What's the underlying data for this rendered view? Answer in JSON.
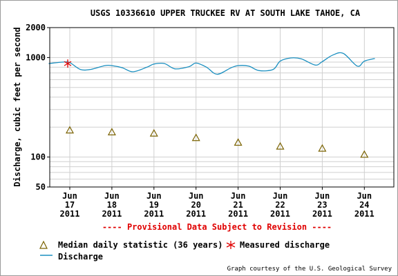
{
  "chart_data": {
    "type": "line",
    "title": "USGS 10336610 UPPER TRUCKEE RV AT SOUTH LAKE TAHOE, CA",
    "ylabel": "Discharge, cubic feet per second",
    "y_scale": "log",
    "ylim": [
      50,
      2000
    ],
    "y_ticks": [
      {
        "value": 2000,
        "label": "2000"
      },
      {
        "value": 1000,
        "label": "1000"
      },
      {
        "value": 100,
        "label": "100"
      },
      {
        "value": 50,
        "label": "50"
      }
    ],
    "x_ticks": [
      {
        "month": "Jun",
        "day": "17",
        "year": "2011"
      },
      {
        "month": "Jun",
        "day": "18",
        "year": "2011"
      },
      {
        "month": "Jun",
        "day": "19",
        "year": "2011"
      },
      {
        "month": "Jun",
        "day": "20",
        "year": "2011"
      },
      {
        "month": "Jun",
        "day": "21",
        "year": "2011"
      },
      {
        "month": "Jun",
        "day": "22",
        "year": "2011"
      },
      {
        "month": "Jun",
        "day": "23",
        "year": "2011"
      },
      {
        "month": "Jun",
        "day": "24",
        "year": "2011"
      }
    ],
    "grid": true,
    "series": [
      {
        "name": "Discharge",
        "color": "#1a8fc0",
        "x": [
          "2011-06-16 12:00",
          "2011-06-16 20:00",
          "2011-06-17 00:00",
          "2011-06-17 06:00",
          "2011-06-17 12:00",
          "2011-06-17 20:00",
          "2011-06-18 00:00",
          "2011-06-18 06:00",
          "2011-06-18 12:00",
          "2011-06-18 20:00",
          "2011-06-19 00:00",
          "2011-06-19 06:00",
          "2011-06-19 12:00",
          "2011-06-19 20:00",
          "2011-06-20 00:00",
          "2011-06-20 06:00",
          "2011-06-20 12:00",
          "2011-06-20 20:00",
          "2011-06-21 00:00",
          "2011-06-21 06:00",
          "2011-06-21 12:00",
          "2011-06-21 20:00",
          "2011-06-22 00:00",
          "2011-06-22 06:00",
          "2011-06-22 12:00",
          "2011-06-22 20:00",
          "2011-06-23 00:00",
          "2011-06-23 06:00",
          "2011-06-23 12:00",
          "2011-06-23 20:00",
          "2011-06-24 00:00",
          "2011-06-24 06:00"
        ],
        "y": [
          870,
          900,
          890,
          760,
          760,
          830,
          830,
          790,
          720,
          800,
          860,
          870,
          770,
          810,
          880,
          800,
          680,
          790,
          830,
          820,
          740,
          760,
          920,
          990,
          970,
          840,
          910,
          1060,
          1100,
          820,
          920,
          980
        ]
      },
      {
        "name": "Measured discharge",
        "color": "#e00000",
        "marker": "asterisk",
        "x": [
          "2011-06-17 00:00"
        ],
        "y": [
          870
        ]
      },
      {
        "name": "Median daily statistic (36 years)",
        "color": "#7a6200",
        "marker": "triangle",
        "x": [
          "2011-06-17 00:00",
          "2011-06-18 00:00",
          "2011-06-19 00:00",
          "2011-06-20 00:00",
          "2011-06-21 00:00",
          "2011-06-22 00:00",
          "2011-06-23 00:00",
          "2011-06-24 00:00"
        ],
        "y": [
          186,
          178,
          173,
          156,
          140,
          128,
          122,
          106
        ]
      }
    ],
    "legend_placement": "bottom-left",
    "annotation": "---- Provisional Data Subject to Revision ----",
    "credit": "Graph courtesy of the U.S. Geological Survey",
    "legend": {
      "median_label": "Median daily statistic (36 years)",
      "measured_label": "Measured discharge",
      "discharge_label": "Discharge"
    }
  }
}
